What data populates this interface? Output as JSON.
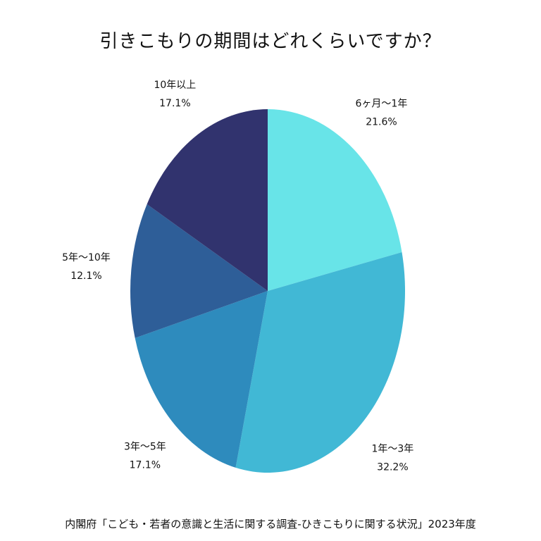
{
  "chart_data": {
    "type": "pie",
    "title": "引きこもりの期間はどれくらいですか？",
    "source": "内閣府「こども・若者の意識と生活に関する調査-ひきこもりに関する状況」2023年度",
    "slices": [
      {
        "label": "6ヶ月〜1年",
        "value": 21.6,
        "value_label": "21.6%",
        "color": "#68e4e8"
      },
      {
        "label": "1年〜3年",
        "value": 32.2,
        "value_label": "32.2%",
        "color": "#41b8d5"
      },
      {
        "label": "3年〜5年",
        "value": 17.1,
        "value_label": "17.1%",
        "color": "#2e8bbd"
      },
      {
        "label": "5年〜10年",
        "value": 12.1,
        "value_label": "12.1%",
        "color": "#2e5e98"
      },
      {
        "label": "10年以上",
        "value": 17.1,
        "value_label": "17.1%",
        "color": "#31336e"
      }
    ],
    "start": "12 o'clock",
    "direction": "clockwise"
  }
}
